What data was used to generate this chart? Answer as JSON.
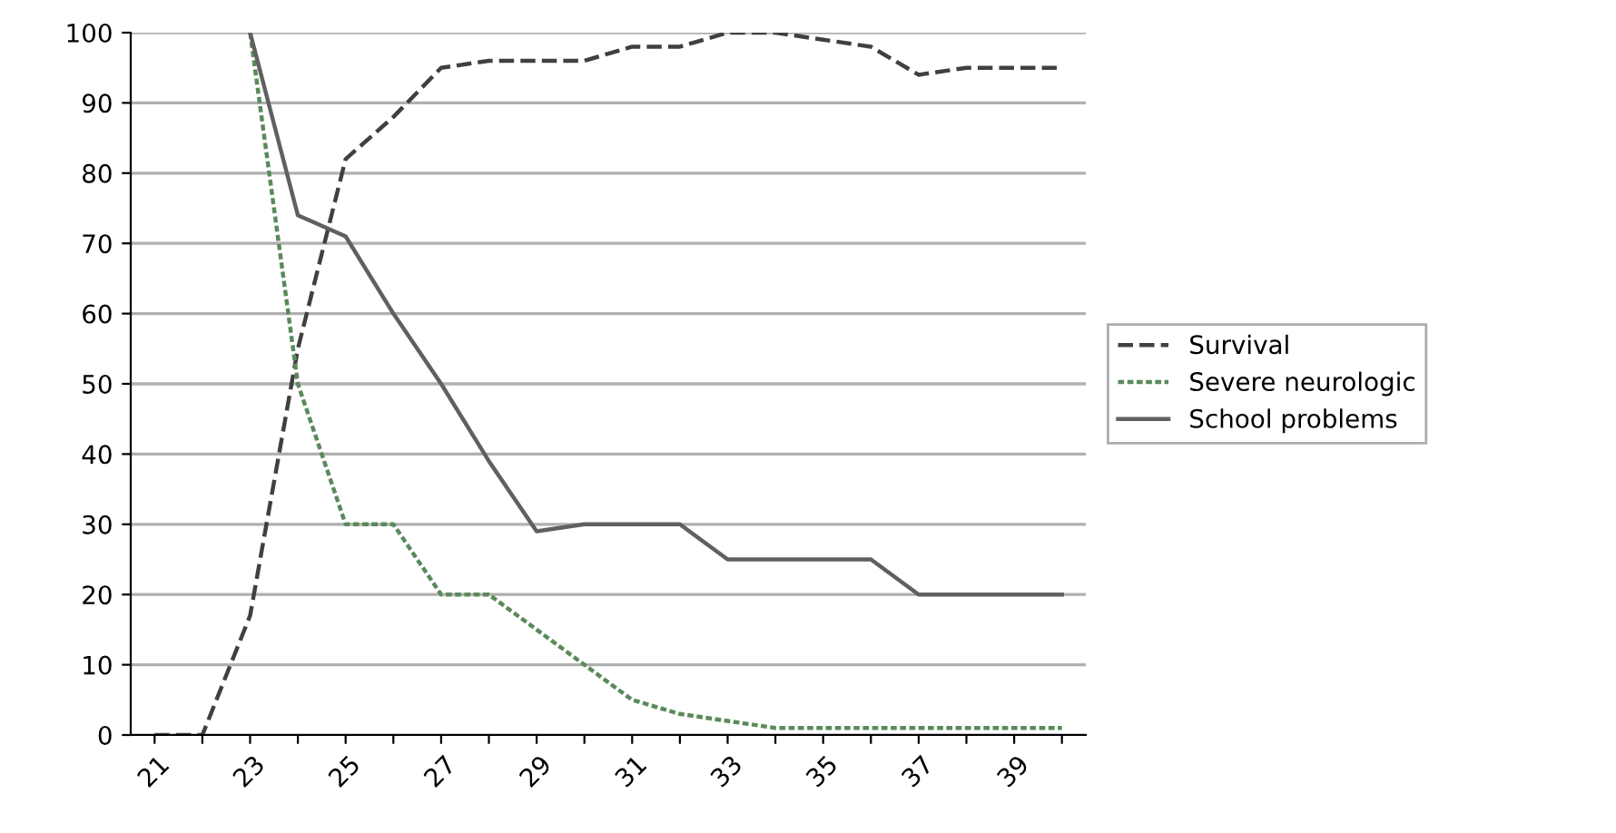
{
  "chart_data": {
    "type": "line",
    "categories": [
      "21",
      null,
      "23",
      null,
      "25",
      null,
      "27",
      null,
      "29",
      null,
      "31",
      null,
      "33",
      null,
      "35",
      null,
      "37",
      null,
      "39",
      null
    ],
    "series": [
      {
        "name": "Survival",
        "color": "#404040",
        "line_style": "dashed",
        "values": [
          0,
          0,
          17,
          55,
          82,
          88,
          95,
          96,
          96,
          96,
          98,
          98,
          100,
          100,
          99,
          98,
          94,
          95,
          95,
          95
        ]
      },
      {
        "name": "Severe neurologic",
        "color": "#5a8a5a",
        "line_style": "dotted",
        "values": [
          null,
          null,
          100,
          50,
          30,
          30,
          20,
          20,
          15,
          10,
          5,
          3,
          2,
          1,
          1,
          1,
          1,
          1,
          1,
          1
        ]
      },
      {
        "name": "School problems",
        "color": "#606060",
        "line_style": "solid",
        "values": [
          null,
          null,
          100,
          74,
          71,
          60,
          50,
          39,
          29,
          30,
          30,
          30,
          25,
          25,
          25,
          25,
          20,
          20,
          20,
          20
        ]
      }
    ],
    "ylim": [
      0,
      100
    ],
    "yticks": [
      0,
      10,
      20,
      30,
      40,
      50,
      60,
      70,
      80,
      90,
      100
    ],
    "grid": "y",
    "legend": "right",
    "marker": "none"
  }
}
